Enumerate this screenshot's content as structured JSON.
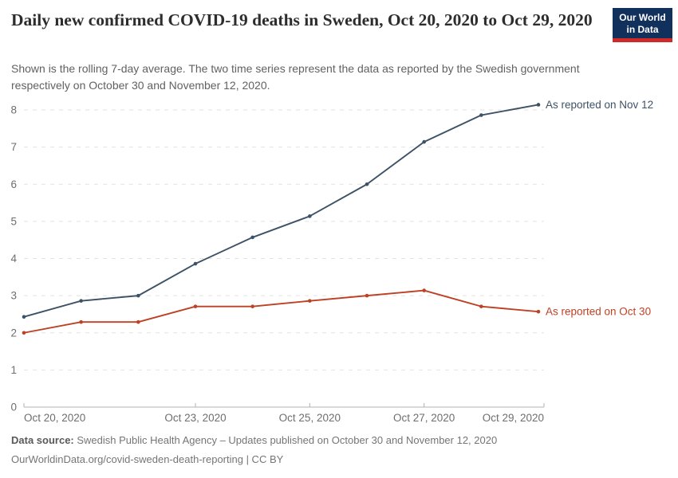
{
  "header": {
    "title": "Daily new confirmed COVID-19 deaths in Sweden, Oct 20, 2020 to Oct 29, 2020",
    "subtitle": "Shown is the rolling 7-day average. The two time series represent the data as reported by the Swedish government respectively on October 30 and November 12, 2020.",
    "logo": {
      "line1": "Our World",
      "line2": "in Data",
      "background_color": "#12305c",
      "stripe_color": "#cf2a27"
    }
  },
  "chart_data": {
    "type": "line",
    "title": "Daily new confirmed COVID-19 deaths in Sweden, Oct 20, 2020 to Oct 29, 2020",
    "x": [
      "Oct 20, 2020",
      "Oct 21, 2020",
      "Oct 22, 2020",
      "Oct 23, 2020",
      "Oct 24, 2020",
      "Oct 25, 2020",
      "Oct 26, 2020",
      "Oct 27, 2020",
      "Oct 28, 2020",
      "Oct 29, 2020"
    ],
    "series": [
      {
        "name": "As reported on Nov 12",
        "color": "#3d5266",
        "values": [
          2.43,
          2.86,
          3.0,
          3.86,
          4.57,
          5.14,
          6.0,
          7.14,
          7.86,
          8.14
        ]
      },
      {
        "name": "As reported on Oct 30",
        "color": "#be4124",
        "values": [
          2.0,
          2.29,
          2.29,
          2.71,
          2.71,
          2.86,
          3.0,
          3.14,
          2.71,
          2.57
        ]
      }
    ],
    "ylim": [
      0,
      8
    ],
    "yticks": [
      0,
      1,
      2,
      3,
      4,
      5,
      6,
      7,
      8
    ],
    "xticks": [
      {
        "index": 0,
        "label": "Oct 20, 2020",
        "anchor": "start"
      },
      {
        "index": 3,
        "label": "Oct 23, 2020",
        "anchor": "middle"
      },
      {
        "index": 5,
        "label": "Oct 25, 2020",
        "anchor": "middle"
      },
      {
        "index": 7,
        "label": "Oct 27, 2020",
        "anchor": "middle"
      },
      {
        "index": 9,
        "label": "Oct 29, 2020",
        "anchor": "end"
      }
    ],
    "grid": "dashed-horizontal",
    "grid_color": "#e2e2e2",
    "axis_color": "#b3b3b3",
    "tick_label_color": "#6e6e6e",
    "legend_position": "labels-at-line-end"
  },
  "footer": {
    "source_label": "Data source:",
    "source_text": " Swedish Public Health Agency – Updates published on October 30 and November 12, 2020",
    "link_text": "OurWorldinData.org/covid-sweden-death-reporting | CC BY"
  }
}
